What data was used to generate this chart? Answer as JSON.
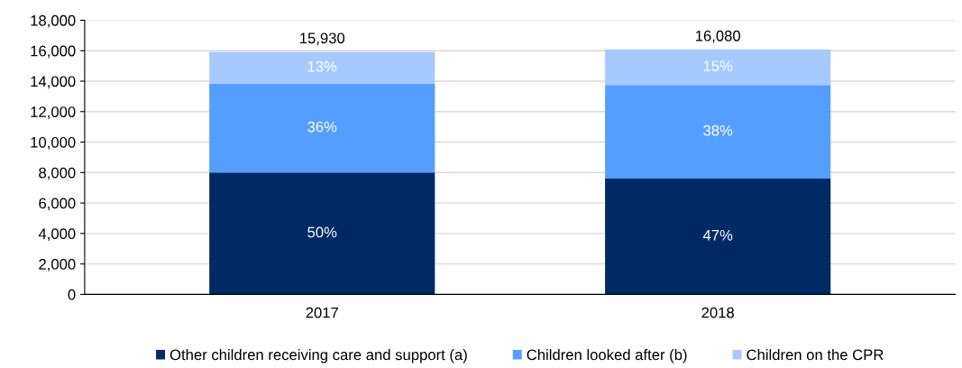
{
  "chart_data": {
    "type": "bar",
    "stacked": true,
    "categories": [
      "2017",
      "2018"
    ],
    "series": [
      {
        "name": "Other children receiving care and support (a)",
        "color": "#002a66",
        "values": [
          8000,
          7600
        ]
      },
      {
        "name": "Children looked after (b)",
        "color": "#559eff",
        "values": [
          5830,
          6150
        ]
      },
      {
        "name": "Children on the CPR",
        "color": "#a6c9ff",
        "values": [
          2100,
          2330
        ]
      }
    ],
    "annotations": [
      "50%",
      "47%",
      "36%",
      "38%",
      "13%",
      "15%"
    ],
    "totals": [
      "15,930",
      "16,080"
    ],
    "ylim": [
      0,
      18000
    ],
    "yticks": [
      {
        "value": 0,
        "label": "0"
      },
      {
        "value": 2000,
        "label": "2,000"
      },
      {
        "value": 4000,
        "label": "4,000"
      },
      {
        "value": 6000,
        "label": "6,000"
      },
      {
        "value": 8000,
        "label": "8,000"
      },
      {
        "value": 10000,
        "label": "10,000"
      },
      {
        "value": 12000,
        "label": "12,000"
      },
      {
        "value": 14000,
        "label": "14,000"
      },
      {
        "value": 16000,
        "label": "16,000"
      },
      {
        "value": 18000,
        "label": "18,000"
      }
    ],
    "grid": "y",
    "legend": "bottom"
  }
}
